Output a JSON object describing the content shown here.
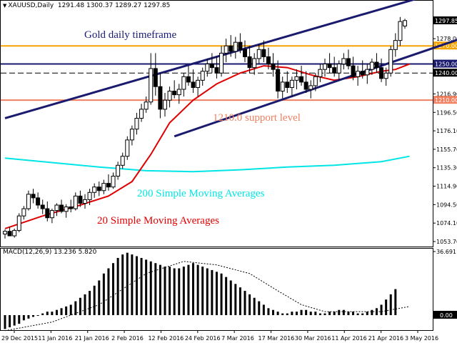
{
  "header": {
    "symbol": "XAUUSD,Daily",
    "ohlc": "1291.48 1300.37 1289.27 1297.85"
  },
  "annotations": [
    {
      "key": "title",
      "text": "Gold daily timeframe",
      "color": "#1a1a7a"
    },
    {
      "key": "support",
      "text": "1210.0 support level",
      "color": "#f08060"
    },
    {
      "key": "sma200",
      "text": "200 Simple Moving Averages",
      "color": "#00e5e5"
    },
    {
      "key": "sma20",
      "text": "20 Simple Moving Averages",
      "color": "#e00000"
    }
  ],
  "macd_header": "MACD(12,26,9) 13.236 5.820",
  "chart_data": {
    "type": "candlestick",
    "price_axis": {
      "ticks": [
        "1297.85",
        "1278.00",
        "1270.00",
        "1250.00",
        "1240.00",
        "1216.90",
        "1210.00",
        "1196.50",
        "1176.10",
        "1155.70",
        "1135.30",
        "1114.90",
        "1094.50",
        "1074.10",
        "1053.70"
      ],
      "min": 1053.7,
      "max": 1308
    },
    "date_labels": [
      "29 Dec 2015",
      "11 Jan 2016",
      "21 Jan 2016",
      "2 Feb 2016",
      "12 Feb 2016",
      "24 Feb 2016",
      "7 Mar 2016",
      "17 Mar 2016",
      "30 Mar 2016",
      "11 Apr 2016",
      "21 Apr 2016",
      "3 May 2016"
    ],
    "levels": [
      {
        "price": 1270.0,
        "label": "1270.00",
        "color": "#f5a300",
        "style": "solid"
      },
      {
        "price": 1250.0,
        "label": "1250.00",
        "color": "#1a1a6e",
        "style": "solid"
      },
      {
        "price": 1240.0,
        "label": "1240.00",
        "color": "#000000",
        "style": "dashed"
      },
      {
        "price": 1210.0,
        "label": "1210.00",
        "color": "#f08060",
        "style": "solid"
      }
    ],
    "channel": {
      "upper": [
        [
          0,
          1190
        ],
        [
          98,
          1338
        ]
      ],
      "lower": [
        [
          36,
          1170
        ],
        [
          98,
          1280
        ]
      ],
      "color": "#1a1a6e"
    },
    "candles": [
      [
        1062,
        1067,
        1057,
        1065
      ],
      [
        1065,
        1070,
        1060,
        1060
      ],
      [
        1060,
        1068,
        1058,
        1066
      ],
      [
        1066,
        1085,
        1064,
        1082
      ],
      [
        1082,
        1093,
        1078,
        1090
      ],
      [
        1090,
        1110,
        1088,
        1106
      ],
      [
        1106,
        1112,
        1096,
        1102
      ],
      [
        1102,
        1108,
        1090,
        1094
      ],
      [
        1094,
        1100,
        1084,
        1090
      ],
      [
        1090,
        1098,
        1076,
        1080
      ],
      [
        1080,
        1090,
        1074,
        1088
      ],
      [
        1088,
        1096,
        1082,
        1094
      ],
      [
        1094,
        1100,
        1085,
        1087
      ],
      [
        1087,
        1095,
        1080,
        1092
      ],
      [
        1092,
        1100,
        1086,
        1090
      ],
      [
        1090,
        1108,
        1088,
        1104
      ],
      [
        1104,
        1110,
        1092,
        1096
      ],
      [
        1096,
        1106,
        1090,
        1100
      ],
      [
        1100,
        1112,
        1094,
        1108
      ],
      [
        1108,
        1118,
        1102,
        1114
      ],
      [
        1114,
        1120,
        1104,
        1110
      ],
      [
        1110,
        1122,
        1106,
        1118
      ],
      [
        1118,
        1128,
        1110,
        1114
      ],
      [
        1114,
        1130,
        1112,
        1126
      ],
      [
        1126,
        1142,
        1122,
        1138
      ],
      [
        1138,
        1152,
        1134,
        1148
      ],
      [
        1148,
        1170,
        1144,
        1166
      ],
      [
        1166,
        1182,
        1160,
        1178
      ],
      [
        1178,
        1196,
        1172,
        1190
      ],
      [
        1190,
        1206,
        1186,
        1200
      ],
      [
        1200,
        1214,
        1196,
        1208
      ],
      [
        1208,
        1262,
        1205,
        1245
      ],
      [
        1245,
        1262,
        1215,
        1225
      ],
      [
        1225,
        1240,
        1190,
        1200
      ],
      [
        1200,
        1218,
        1192,
        1210
      ],
      [
        1210,
        1225,
        1202,
        1220
      ],
      [
        1220,
        1232,
        1212,
        1216
      ],
      [
        1216,
        1228,
        1206,
        1222
      ],
      [
        1222,
        1240,
        1214,
        1236
      ],
      [
        1236,
        1248,
        1226,
        1230
      ],
      [
        1230,
        1244,
        1218,
        1224
      ],
      [
        1224,
        1236,
        1214,
        1232
      ],
      [
        1232,
        1246,
        1226,
        1242
      ],
      [
        1242,
        1256,
        1236,
        1250
      ],
      [
        1250,
        1262,
        1240,
        1246
      ],
      [
        1246,
        1258,
        1234,
        1240
      ],
      [
        1240,
        1270,
        1236,
        1262
      ],
      [
        1262,
        1278,
        1252,
        1270
      ],
      [
        1270,
        1282,
        1258,
        1264
      ],
      [
        1264,
        1280,
        1256,
        1274
      ],
      [
        1274,
        1284,
        1262,
        1266
      ],
      [
        1266,
        1276,
        1252,
        1258
      ],
      [
        1258,
        1270,
        1240,
        1246
      ],
      [
        1246,
        1262,
        1238,
        1256
      ],
      [
        1256,
        1272,
        1250,
        1266
      ],
      [
        1266,
        1276,
        1252,
        1258
      ],
      [
        1258,
        1268,
        1244,
        1250
      ],
      [
        1250,
        1262,
        1236,
        1244
      ],
      [
        1244,
        1254,
        1212,
        1220
      ],
      [
        1220,
        1236,
        1212,
        1230
      ],
      [
        1230,
        1242,
        1218,
        1224
      ],
      [
        1224,
        1236,
        1214,
        1232
      ],
      [
        1232,
        1244,
        1222,
        1236
      ],
      [
        1236,
        1248,
        1226,
        1230
      ],
      [
        1230,
        1242,
        1218,
        1222
      ],
      [
        1222,
        1232,
        1212,
        1226
      ],
      [
        1226,
        1240,
        1220,
        1236
      ],
      [
        1236,
        1250,
        1230,
        1244
      ],
      [
        1244,
        1256,
        1236,
        1250
      ],
      [
        1250,
        1262,
        1240,
        1246
      ],
      [
        1246,
        1258,
        1236,
        1240
      ],
      [
        1240,
        1254,
        1232,
        1250
      ],
      [
        1250,
        1262,
        1244,
        1256
      ],
      [
        1256,
        1266,
        1244,
        1248
      ],
      [
        1248,
        1258,
        1232,
        1236
      ],
      [
        1236,
        1248,
        1226,
        1242
      ],
      [
        1242,
        1254,
        1234,
        1238
      ],
      [
        1238,
        1250,
        1228,
        1244
      ],
      [
        1244,
        1256,
        1238,
        1252
      ],
      [
        1252,
        1262,
        1240,
        1246
      ],
      [
        1246,
        1256,
        1230,
        1234
      ],
      [
        1234,
        1246,
        1226,
        1240
      ],
      [
        1240,
        1270,
        1236,
        1266
      ],
      [
        1266,
        1284,
        1258,
        1276
      ],
      [
        1276,
        1302,
        1270,
        1297
      ],
      [
        1292,
        1300,
        1289,
        1298
      ]
    ],
    "sma20": [
      [
        0,
        1068
      ],
      [
        8,
        1082
      ],
      [
        16,
        1094
      ],
      [
        22,
        1104
      ],
      [
        27,
        1120
      ],
      [
        31,
        1150
      ],
      [
        35,
        1185
      ],
      [
        40,
        1210
      ],
      [
        45,
        1228
      ],
      [
        50,
        1240
      ],
      [
        55,
        1248
      ],
      [
        60,
        1246
      ],
      [
        65,
        1238
      ],
      [
        70,
        1232
      ],
      [
        75,
        1236
      ],
      [
        80,
        1242
      ],
      [
        83,
        1244
      ],
      [
        86,
        1250
      ]
    ],
    "sma200": [
      [
        0,
        1146
      ],
      [
        10,
        1141
      ],
      [
        20,
        1136
      ],
      [
        30,
        1132
      ],
      [
        40,
        1131
      ],
      [
        50,
        1133
      ],
      [
        60,
        1136
      ],
      [
        70,
        1138
      ],
      [
        80,
        1142
      ],
      [
        86,
        1148
      ]
    ],
    "macd": {
      "axis": [
        "36.691",
        "0.00"
      ],
      "range": [
        -10,
        36.691
      ],
      "hist": [
        -8,
        -7,
        -6,
        -5,
        -3,
        -2,
        -1,
        0,
        1,
        2,
        2,
        3,
        4,
        5,
        6,
        8,
        10,
        12,
        14,
        17,
        20,
        24,
        27,
        30,
        33,
        35,
        36,
        35,
        34,
        33,
        32,
        31,
        30,
        29,
        28,
        28,
        27,
        27,
        28,
        29,
        30,
        29,
        28,
        27,
        26,
        25,
        24,
        22,
        20,
        18,
        16,
        14,
        12,
        10,
        8,
        6,
        4,
        3,
        2,
        1,
        1,
        2,
        2,
        3,
        3,
        2,
        2,
        1,
        1,
        2,
        2,
        3,
        3,
        2,
        2,
        1,
        1,
        2,
        3,
        4,
        6,
        9,
        12,
        15
      ],
      "signal": [
        [
          0,
          -9
        ],
        [
          10,
          -4
        ],
        [
          20,
          6
        ],
        [
          30,
          24
        ],
        [
          38,
          31
        ],
        [
          45,
          29
        ],
        [
          52,
          24
        ],
        [
          58,
          14
        ],
        [
          63,
          6
        ],
        [
          68,
          2
        ],
        [
          75,
          2
        ],
        [
          80,
          2
        ],
        [
          86,
          5
        ]
      ]
    }
  }
}
